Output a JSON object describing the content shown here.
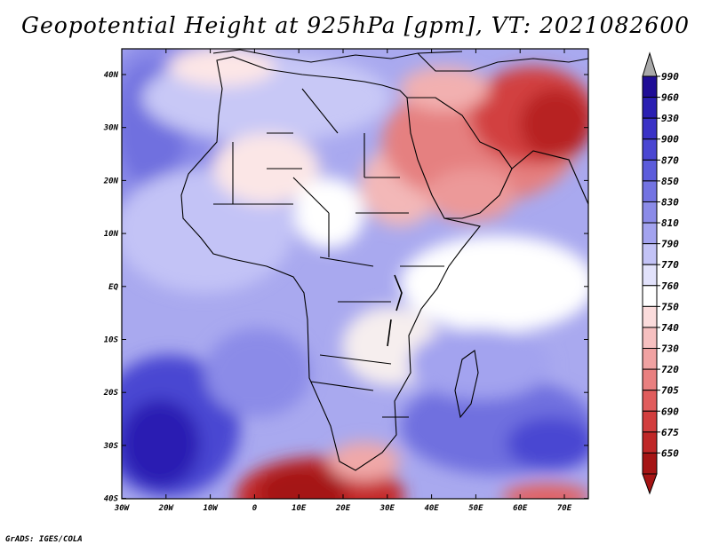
{
  "title": "Geopotential Height at 925hPa [gpm], VT: 2021082600",
  "credit": "GrADS: IGES/COLA",
  "map": {
    "variable": "Geopotential Height",
    "level": "925hPa",
    "units": "gpm",
    "valid_time": "2021082600",
    "lat_labels": [
      "40N",
      "30N",
      "20N",
      "10N",
      "EQ",
      "10S",
      "20S",
      "30S",
      "40S"
    ],
    "lon_labels": [
      "30W",
      "20W",
      "10W",
      "0",
      "10E",
      "20E",
      "30E",
      "40E",
      "50E",
      "60E",
      "70E"
    ]
  },
  "colorbar": {
    "levels": [
      "990",
      "960",
      "930",
      "900",
      "870",
      "850",
      "830",
      "810",
      "790",
      "770",
      "760",
      "750",
      "740",
      "730",
      "720",
      "705",
      "690",
      "675",
      "650"
    ],
    "colors": [
      "#1f0d96",
      "#2a1fb2",
      "#3a32c6",
      "#4a46d2",
      "#5c5cdb",
      "#7373e2",
      "#8b8be8",
      "#a3a3ef",
      "#c3c3f6",
      "#e2e2fb",
      "#ffffff",
      "#fbdcdc",
      "#f6c0c0",
      "#f0a2a2",
      "#e98080",
      "#e05c5c",
      "#d23e3e",
      "#bf2727",
      "#a51414"
    ],
    "top_arrow_color": "#a9a9a9",
    "bottom_arrow_color": "#a51414"
  }
}
